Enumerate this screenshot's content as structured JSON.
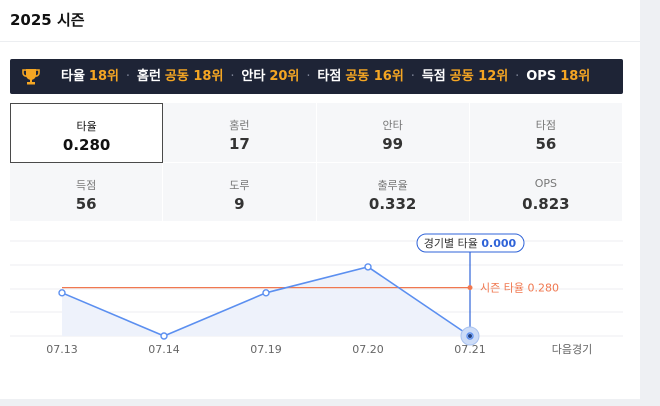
{
  "section_title": "2025 시즌",
  "ranks": [
    {
      "label": "타율",
      "rank": "18위"
    },
    {
      "label": "홈런",
      "rank": "공동 18위"
    },
    {
      "label": "안타",
      "rank": "20위"
    },
    {
      "label": "타점",
      "rank": "공동 16위"
    },
    {
      "label": "득점",
      "rank": "공동 12위"
    },
    {
      "label": "OPS",
      "rank": "18위"
    }
  ],
  "stats": [
    {
      "label": "타율",
      "value": "0.280",
      "selected": true
    },
    {
      "label": "홈런",
      "value": "17"
    },
    {
      "label": "안타",
      "value": "99"
    },
    {
      "label": "타점",
      "value": "56"
    },
    {
      "label": "득점",
      "value": "56"
    },
    {
      "label": "도루",
      "value": "9"
    },
    {
      "label": "출루율",
      "value": "0.332"
    },
    {
      "label": "OPS",
      "value": "0.823"
    }
  ],
  "colors": {
    "rank_bar_bg": "#1e2436",
    "rank_highlight": "#f5a623",
    "line": "#5b8ff0",
    "area": "#eef2fb",
    "season_line": "#f07850",
    "tooltip": "#2f63d8"
  },
  "chart_data": {
    "type": "line",
    "categories": [
      "07.13",
      "07.14",
      "07.19",
      "07.20",
      "07.21"
    ],
    "next_game_label": "다음경기",
    "values": [
      0.25,
      0.0,
      0.25,
      0.4,
      0.0
    ],
    "ylim": [
      0,
      0.55
    ],
    "season_avg": 0.28,
    "season_avg_label": "시즌 타율",
    "season_avg_text": "0.280",
    "tooltip": {
      "label": "경기별 타율",
      "value": "0.000",
      "index": 4
    },
    "grid": true
  }
}
